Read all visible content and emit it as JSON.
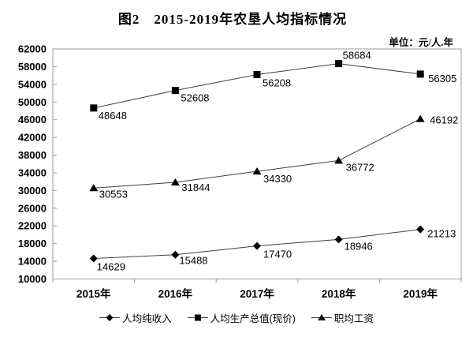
{
  "figure": {
    "title": "图2　2015-2019年农垦人均指标情况",
    "unit_label": "单位：元/人.年"
  },
  "chart_data": {
    "type": "line",
    "title": "图2　2015-2019年农垦人均指标情况",
    "unit": "元/人.年",
    "categories": [
      "2015年",
      "2016年",
      "2017年",
      "2018年",
      "2019年"
    ],
    "series": [
      {
        "name": "人均纯收入",
        "marker": "diamond",
        "values": [
          14629,
          15488,
          17470,
          18946,
          21213
        ]
      },
      {
        "name": "人均生产总值(现价)",
        "marker": "square",
        "values": [
          48648,
          52608,
          56208,
          58684,
          56305
        ]
      },
      {
        "name": "职均工资",
        "marker": "triangle",
        "values": [
          30553,
          31844,
          34330,
          36772,
          46192
        ]
      }
    ],
    "ylim": [
      10000,
      62000
    ],
    "ytick_step": 4000,
    "ytick_labels": [
      "62000",
      "58000",
      "54000",
      "50000",
      "46000",
      "42000",
      "38000",
      "34000",
      "30000",
      "26000",
      "22000",
      "18000",
      "14000",
      "10000"
    ],
    "grid": false,
    "data_labels": true,
    "legend_position": "bottom",
    "colors": {
      "line": "#3f3f3f",
      "marker": "#000000",
      "frame": "#9c9c9c",
      "text": "#000000"
    }
  }
}
